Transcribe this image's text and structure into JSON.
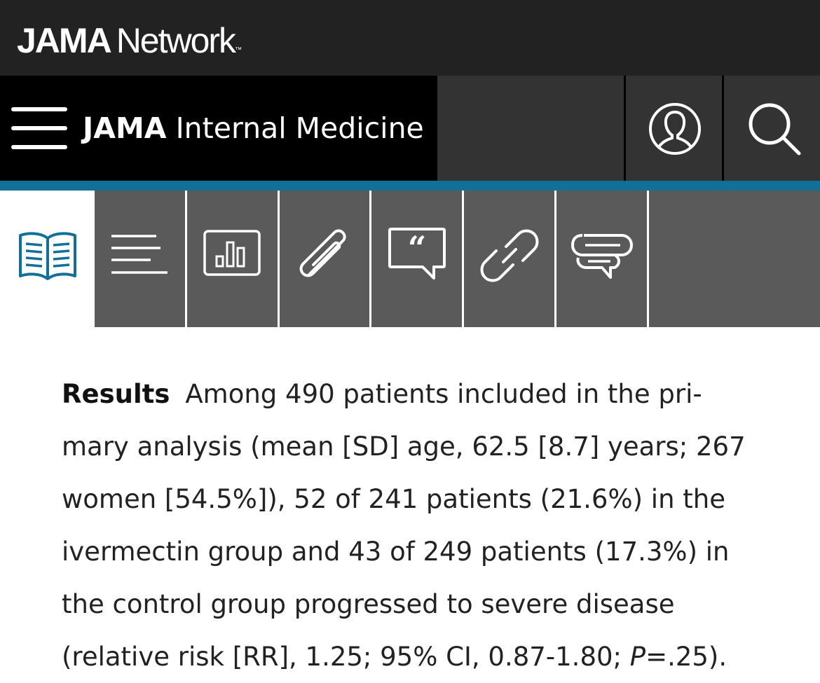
{
  "brand": {
    "part1": "JAMA",
    "part2": "Network",
    "tm": "™"
  },
  "journal": {
    "title_bold": "JAMA",
    "title_rest": "Internal Medicine"
  },
  "header": {
    "menu_icon": "menu-icon",
    "account_icon": "user-icon",
    "search_icon": "search-icon"
  },
  "colors": {
    "accent": "#116f98",
    "brand_bar": "#222222",
    "toolbar": "#5a5a5a"
  },
  "toolbar": {
    "tools": [
      {
        "icon": "book-icon",
        "active": true
      },
      {
        "icon": "text-lines-icon"
      },
      {
        "icon": "bar-chart-icon"
      },
      {
        "icon": "paperclip-icon"
      },
      {
        "icon": "quote-icon"
      },
      {
        "icon": "link-icon"
      },
      {
        "icon": "comment-icon"
      }
    ]
  },
  "abstract": {
    "label": "Results",
    "lines": [
      "Among 490 patients included in the pri-",
      "mary analysis (mean [SD] age, 62.5 [8.7] years; 267",
      "women [54.5%]), 52 of 241 patients (21.6%) in the",
      "ivermectin group and 43 of 249 patients (17.3%) in",
      "the control group progressed to severe disease",
      "(relative risk [RR], 1.25; 95% CI, 0.87-1.80; "
    ],
    "p_label": "P",
    "p_value": "=.25)."
  }
}
